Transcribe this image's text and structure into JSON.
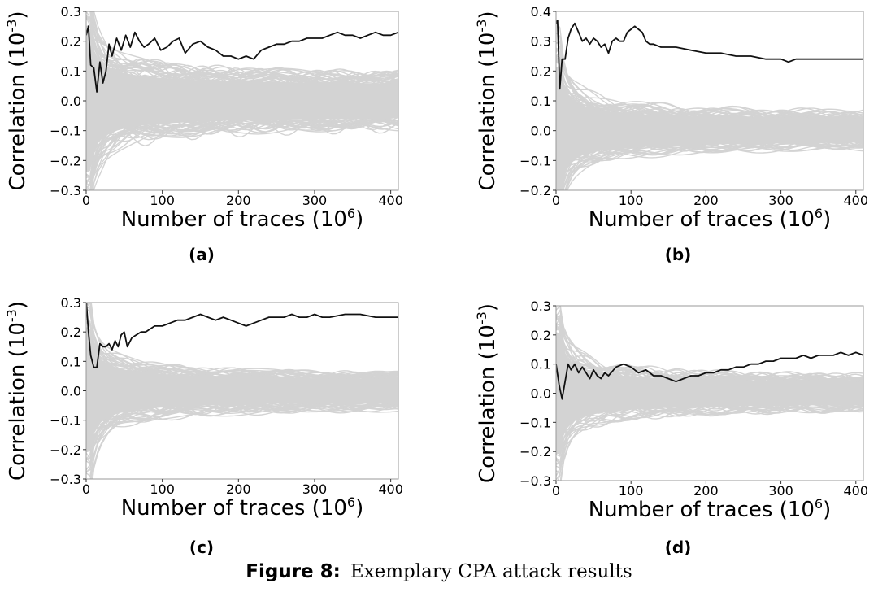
{
  "figure": {
    "label": "Figure 8:",
    "text": "Exemplary CPA attack results"
  },
  "colors": {
    "correct_key": "#111111",
    "wrong_keys": "#d3d3d3",
    "frame": "#9a9a9a"
  },
  "chart_data": [
    {
      "type": "line",
      "panel_label": "(a)",
      "xlabel_text": "Number of traces (10",
      "xlabel_sup": "6",
      "xlabel_close": ")",
      "ylabel_text": "Correlation (10",
      "ylabel_sup": "-3",
      "ylabel_close": ")",
      "xlim": [
        0,
        410
      ],
      "ylim": [
        -0.3,
        0.3
      ],
      "xticks": [
        0,
        100,
        200,
        300,
        400
      ],
      "xtick_labels": [
        "0",
        "100",
        "200",
        "300",
        "400"
      ],
      "yticks": [
        -0.3,
        -0.2,
        -0.1,
        0.0,
        0.1,
        0.2,
        0.3
      ],
      "ytick_labels": [
        "−0.3",
        "−0.2",
        "−0.1",
        "0.0",
        "0.1",
        "0.2",
        "0.3"
      ],
      "wrong_key_band": {
        "start": 0.8,
        "end": 0.15,
        "decay": 0.6
      },
      "series": [
        {
          "color": "#111111",
          "x": [
            0,
            3,
            6,
            10,
            14,
            18,
            22,
            26,
            30,
            34,
            40,
            46,
            52,
            58,
            64,
            70,
            76,
            82,
            90,
            98,
            106,
            114,
            122,
            130,
            140,
            150,
            160,
            170,
            180,
            190,
            200,
            210,
            220,
            230,
            240,
            250,
            260,
            270,
            280,
            290,
            300,
            310,
            320,
            330,
            340,
            350,
            360,
            370,
            380,
            390,
            400,
            410
          ],
          "y": [
            0.22,
            0.25,
            0.12,
            0.11,
            0.03,
            0.13,
            0.06,
            0.1,
            0.19,
            0.15,
            0.21,
            0.17,
            0.22,
            0.18,
            0.23,
            0.2,
            0.18,
            0.19,
            0.21,
            0.17,
            0.18,
            0.2,
            0.21,
            0.16,
            0.19,
            0.2,
            0.18,
            0.17,
            0.15,
            0.15,
            0.14,
            0.15,
            0.14,
            0.17,
            0.18,
            0.19,
            0.19,
            0.2,
            0.2,
            0.21,
            0.21,
            0.21,
            0.22,
            0.23,
            0.22,
            0.22,
            0.21,
            0.22,
            0.23,
            0.22,
            0.22,
            0.23
          ]
        }
      ]
    },
    {
      "type": "line",
      "panel_label": "(b)",
      "xlabel_text": "Number of traces (10",
      "xlabel_sup": "6",
      "xlabel_close": ")",
      "ylabel_text": "Correlation (10",
      "ylabel_sup": "-3",
      "ylabel_close": ")",
      "xlim": [
        0,
        410
      ],
      "ylim": [
        -0.2,
        0.4
      ],
      "xticks": [
        0,
        100,
        200,
        300,
        400
      ],
      "xtick_labels": [
        "0",
        "100",
        "200",
        "300",
        "400"
      ],
      "yticks": [
        -0.2,
        -0.1,
        0.0,
        0.1,
        0.2,
        0.3,
        0.4
      ],
      "ytick_labels": [
        "−0.2",
        "−0.1",
        "0.0",
        "0.1",
        "0.2",
        "0.3",
        "0.4"
      ],
      "wrong_key_band": {
        "start": 0.7,
        "end": 0.09,
        "decay": 0.6
      },
      "series": [
        {
          "color": "#111111",
          "x": [
            0,
            2,
            5,
            8,
            12,
            16,
            20,
            25,
            30,
            35,
            40,
            45,
            50,
            55,
            60,
            65,
            70,
            75,
            80,
            85,
            90,
            95,
            100,
            105,
            110,
            115,
            120,
            125,
            130,
            140,
            150,
            160,
            180,
            200,
            220,
            240,
            260,
            280,
            300,
            310,
            320,
            340,
            360,
            380,
            400,
            410
          ],
          "y": [
            0.36,
            0.37,
            0.14,
            0.24,
            0.24,
            0.31,
            0.34,
            0.36,
            0.33,
            0.3,
            0.31,
            0.29,
            0.31,
            0.3,
            0.28,
            0.29,
            0.26,
            0.3,
            0.31,
            0.3,
            0.3,
            0.33,
            0.34,
            0.35,
            0.34,
            0.33,
            0.3,
            0.29,
            0.29,
            0.28,
            0.28,
            0.28,
            0.27,
            0.26,
            0.26,
            0.25,
            0.25,
            0.24,
            0.24,
            0.23,
            0.24,
            0.24,
            0.24,
            0.24,
            0.24,
            0.24
          ]
        }
      ]
    },
    {
      "type": "line",
      "panel_label": "(c)",
      "xlabel_text": "Number of traces (10",
      "xlabel_sup": "6",
      "xlabel_close": ")",
      "ylabel_text": "Correlation (10",
      "ylabel_sup": "-3",
      "ylabel_close": ")",
      "xlim": [
        0,
        410
      ],
      "ylim": [
        -0.3,
        0.3
      ],
      "xticks": [
        0,
        100,
        200,
        300,
        400
      ],
      "xtick_labels": [
        "0",
        "100",
        "200",
        "300",
        "400"
      ],
      "yticks": [
        -0.3,
        -0.2,
        -0.1,
        0.0,
        0.1,
        0.2,
        0.3
      ],
      "ytick_labels": [
        "−0.3",
        "−0.2",
        "−0.1",
        "0.0",
        "0.1",
        "0.2",
        "0.3"
      ],
      "wrong_key_band": {
        "start": 0.7,
        "end": 0.09,
        "decay": 0.6
      },
      "series": [
        {
          "color": "#111111",
          "x": [
            0,
            3,
            6,
            10,
            14,
            18,
            22,
            26,
            30,
            34,
            38,
            42,
            46,
            50,
            54,
            60,
            66,
            72,
            78,
            84,
            90,
            100,
            110,
            120,
            130,
            140,
            150,
            160,
            170,
            180,
            190,
            200,
            210,
            220,
            230,
            240,
            250,
            260,
            270,
            280,
            290,
            300,
            310,
            320,
            340,
            360,
            380,
            400,
            410
          ],
          "y": [
            0.31,
            0.2,
            0.12,
            0.08,
            0.08,
            0.16,
            0.15,
            0.15,
            0.16,
            0.14,
            0.17,
            0.15,
            0.19,
            0.2,
            0.15,
            0.18,
            0.19,
            0.2,
            0.2,
            0.21,
            0.22,
            0.22,
            0.23,
            0.24,
            0.24,
            0.25,
            0.26,
            0.25,
            0.24,
            0.25,
            0.24,
            0.23,
            0.22,
            0.23,
            0.24,
            0.25,
            0.25,
            0.25,
            0.26,
            0.25,
            0.25,
            0.26,
            0.25,
            0.25,
            0.26,
            0.26,
            0.25,
            0.25,
            0.25
          ]
        }
      ]
    },
    {
      "type": "line",
      "panel_label": "(d)",
      "xlabel_text": "Number of traces (10",
      "xlabel_sup": "6",
      "xlabel_close": ")",
      "ylabel_text": "Correlation (10",
      "ylabel_sup": "-3",
      "ylabel_close": ")",
      "xlim": [
        0,
        410
      ],
      "ylim": [
        -0.3,
        0.3
      ],
      "xticks": [
        0,
        100,
        200,
        300,
        400
      ],
      "xtick_labels": [
        "0",
        "100",
        "200",
        "300",
        "400"
      ],
      "yticks": [
        -0.3,
        -0.2,
        -0.1,
        0.0,
        0.1,
        0.2,
        0.3
      ],
      "ytick_labels": [
        "−0.3",
        "−0.2",
        "−0.1",
        "0.0",
        "0.1",
        "0.2",
        "0.3"
      ],
      "wrong_key_band": {
        "start": 0.7,
        "end": 0.09,
        "decay": 0.6
      },
      "series": [
        {
          "color": "#111111",
          "x": [
            0,
            4,
            8,
            12,
            16,
            20,
            25,
            30,
            35,
            40,
            45,
            50,
            55,
            60,
            65,
            70,
            80,
            90,
            100,
            110,
            120,
            130,
            140,
            150,
            160,
            170,
            180,
            190,
            200,
            210,
            220,
            230,
            240,
            250,
            260,
            270,
            280,
            290,
            300,
            310,
            320,
            330,
            340,
            350,
            360,
            370,
            380,
            390,
            400,
            410
          ],
          "y": [
            0.1,
            0.03,
            -0.02,
            0.04,
            0.1,
            0.08,
            0.1,
            0.07,
            0.09,
            0.07,
            0.05,
            0.08,
            0.06,
            0.05,
            0.07,
            0.06,
            0.09,
            0.1,
            0.09,
            0.07,
            0.08,
            0.06,
            0.06,
            0.05,
            0.04,
            0.05,
            0.06,
            0.06,
            0.07,
            0.07,
            0.08,
            0.08,
            0.09,
            0.09,
            0.1,
            0.1,
            0.11,
            0.11,
            0.12,
            0.12,
            0.12,
            0.13,
            0.12,
            0.13,
            0.13,
            0.13,
            0.14,
            0.13,
            0.14,
            0.13
          ]
        }
      ]
    }
  ]
}
